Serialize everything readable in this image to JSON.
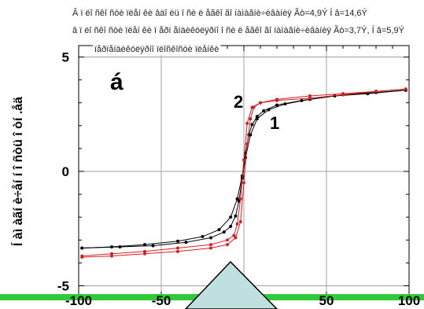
{
  "chart_data": {
    "type": "line",
    "annotations": [
      "Â ï ëî ñêî ñòè ïëåí êè âäî ëü î ñè ë åãêî ãî  íàìàãíè÷èâàíèÿ Ãò=4,9Ý Í â=14,6Ý",
      "â ï ëî ñêî ñòè ïëåí êè ï åðï åíäèêóëÿðíî î ñè ë åãêî ãî íàìàãíè÷èâàíèÿ Ãò=3,7Ý, Í â=5,9Ý",
      "ïåðïåíäèêóëÿðíî ïëîñêîñòè ïëåíêè"
    ],
    "panel_label": "á",
    "curve_labels": [
      "1",
      "2"
    ],
    "ylabel": "Í àì àãí è÷åí í î ñòü î òí .åä",
    "xlim": [
      -100,
      100
    ],
    "ylim": [
      -5.5,
      5.5
    ],
    "x_ticks": [
      "-100",
      "-50",
      "50",
      "100"
    ],
    "y_ticks": [
      "-5",
      "0",
      "5"
    ],
    "grid": true,
    "series": [
      {
        "color": "#000000",
        "x": [
          -98,
          -80,
          -60,
          -40,
          -25,
          -15,
          -8,
          -4,
          -1,
          1,
          3,
          5,
          8,
          12,
          20,
          35,
          55,
          75,
          98
        ],
        "y": [
          -3.35,
          -3.3,
          -3.2,
          -3.05,
          -2.85,
          -2.55,
          -2.0,
          -1.2,
          -0.2,
          0.8,
          1.6,
          2.05,
          2.4,
          2.65,
          2.9,
          3.1,
          3.3,
          3.4,
          3.55
        ]
      },
      {
        "color": "#000000",
        "x": [
          98,
          80,
          60,
          40,
          25,
          15,
          8,
          4,
          1,
          -1,
          -3,
          -5,
          -8,
          -12,
          -20,
          -35,
          -55,
          -75,
          -98
        ],
        "y": [
          3.55,
          3.45,
          3.35,
          3.15,
          2.95,
          2.7,
          2.3,
          1.6,
          0.6,
          -0.3,
          -1.3,
          -1.95,
          -2.4,
          -2.65,
          -2.9,
          -3.1,
          -3.25,
          -3.3,
          -3.35
        ]
      },
      {
        "color": "#d42020",
        "x": [
          -98,
          -80,
          -60,
          -40,
          -20,
          -10,
          -5,
          -2,
          0,
          2,
          4,
          6,
          10,
          20,
          40,
          60,
          80,
          98
        ],
        "y": [
          -3.75,
          -3.7,
          -3.6,
          -3.5,
          -3.35,
          -3.2,
          -2.9,
          -2.2,
          -0.5,
          1.2,
          2.3,
          2.8,
          3.0,
          3.1,
          3.2,
          3.35,
          3.5,
          3.6
        ]
      },
      {
        "color": "#d42020",
        "x": [
          98,
          80,
          60,
          40,
          20,
          10,
          5,
          2,
          0,
          -2,
          -4,
          -6,
          -10,
          -20,
          -40,
          -60,
          -80,
          -98
        ],
        "y": [
          3.6,
          3.5,
          3.4,
          3.3,
          3.15,
          3.0,
          2.8,
          2.1,
          0.5,
          -1.2,
          -2.3,
          -2.8,
          -3.0,
          -3.2,
          -3.35,
          -3.5,
          -3.6,
          -3.7
        ]
      }
    ]
  },
  "style": {
    "axis_bar_color": "#2fc93a",
    "marker_fill": "#bfe0e0",
    "grid_color": "#a0a0a0"
  }
}
